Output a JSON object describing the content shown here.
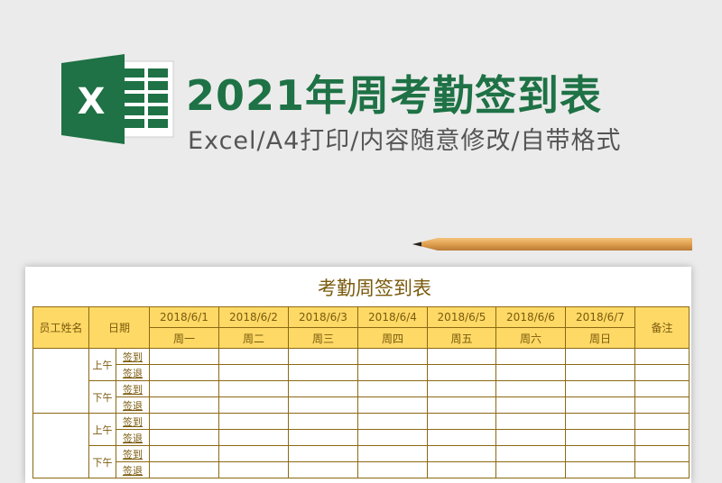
{
  "banner": {
    "title": "2021年周考勤签到表",
    "subtitle": "Excel/A4打印/内容随意修改/自带格式",
    "logo_letter": "X"
  },
  "colors": {
    "brand_green": "#1e7245",
    "header_fill": "#ffd966",
    "border": "#8b6914"
  },
  "sheet": {
    "title": "考勤周签到表",
    "col_name": "员工姓名",
    "col_date": "日期",
    "col_note": "备注",
    "dates": [
      "2018/6/1",
      "2018/6/2",
      "2018/6/3",
      "2018/6/4",
      "2018/6/5",
      "2018/6/6",
      "2018/6/7"
    ],
    "weekdays": [
      "周一",
      "周二",
      "周三",
      "周四",
      "周五",
      "周六",
      "周日"
    ],
    "am": "上午",
    "pm": "下午",
    "sign_in": "签到",
    "sign_out": "签退"
  }
}
